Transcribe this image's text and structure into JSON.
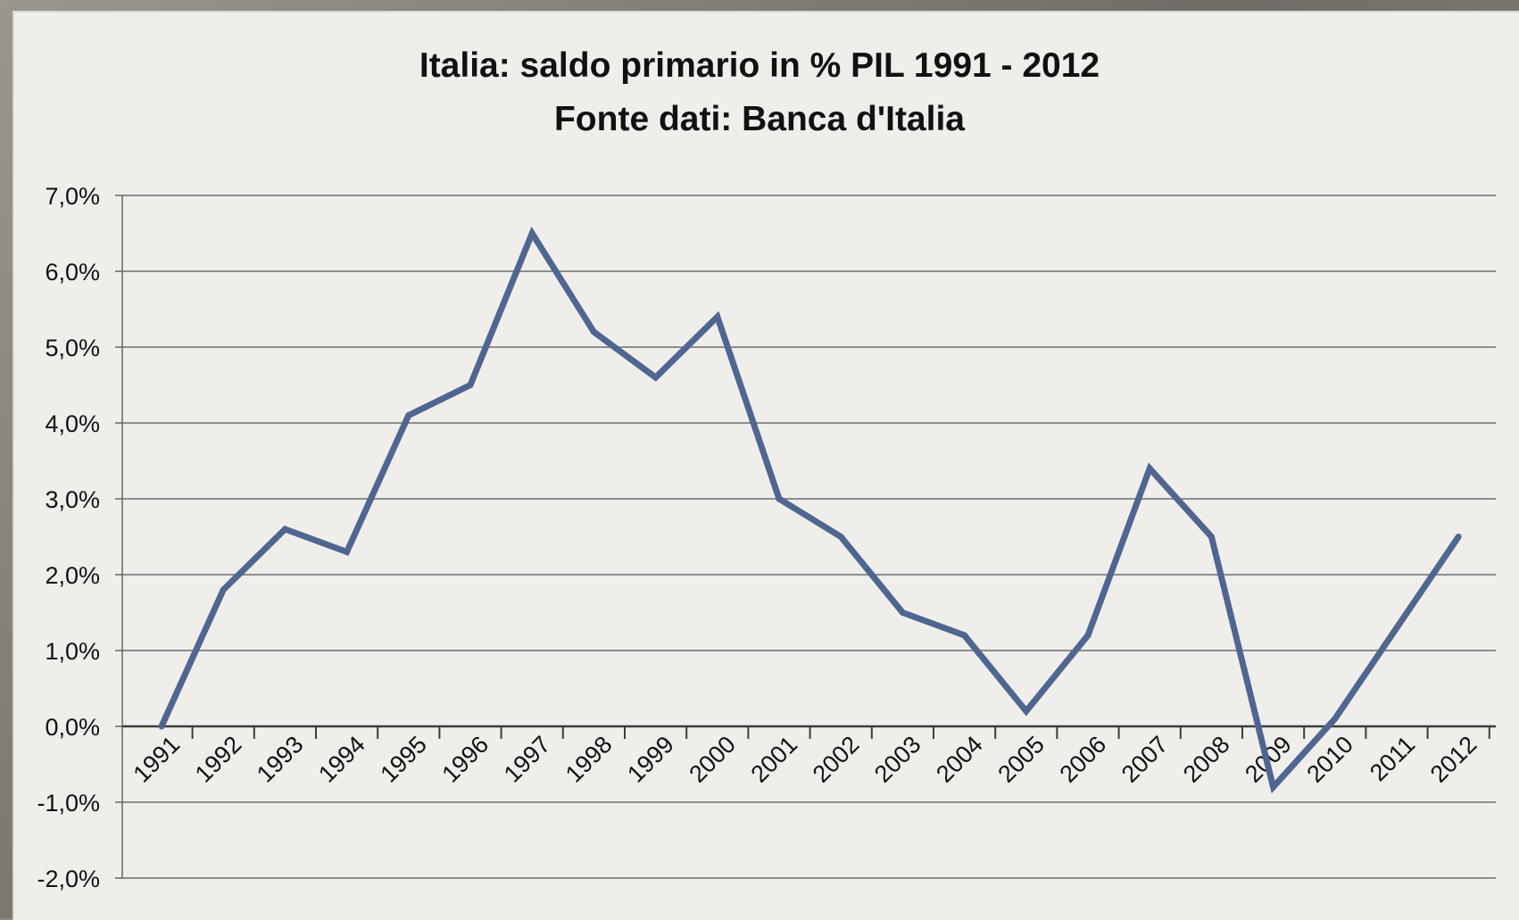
{
  "chart_data": {
    "type": "line",
    "title": "Italia: saldo primario in % PIL 1991 - 2012",
    "subtitle": "Fonte dati: Banca d'Italia",
    "xlabel": "",
    "ylabel": "",
    "categories": [
      "1991",
      "1992",
      "1993",
      "1994",
      "1995",
      "1996",
      "1997",
      "1998",
      "1999",
      "2000",
      "2001",
      "2002",
      "2003",
      "2004",
      "2005",
      "2006",
      "2007",
      "2008",
      "2009",
      "2010",
      "2011",
      "2012"
    ],
    "series": [
      {
        "values": [
          0.0,
          1.8,
          2.6,
          2.3,
          4.1,
          4.5,
          6.5,
          5.2,
          4.6,
          5.4,
          3.0,
          2.5,
          1.5,
          1.2,
          0.2,
          1.2,
          3.4,
          2.5,
          -0.8,
          0.1,
          1.3,
          2.5
        ],
        "color": "#4f6690"
      }
    ],
    "ylim": [
      -2.0,
      7.0
    ],
    "y_ticks": [
      7.0,
      6.0,
      5.0,
      4.0,
      3.0,
      2.0,
      1.0,
      0.0,
      -1.0,
      -2.0
    ],
    "y_tick_labels": [
      "7,0%",
      "6,0%",
      "5,0%",
      "4,0%",
      "3,0%",
      "2,0%",
      "1,0%",
      "0,0%",
      "-1,0%",
      "-2,0%"
    ],
    "grid": true,
    "legend": "none",
    "colors": {
      "line": "#4f6690",
      "grid": "#6d6d6d",
      "background": "#efeeeb"
    }
  }
}
